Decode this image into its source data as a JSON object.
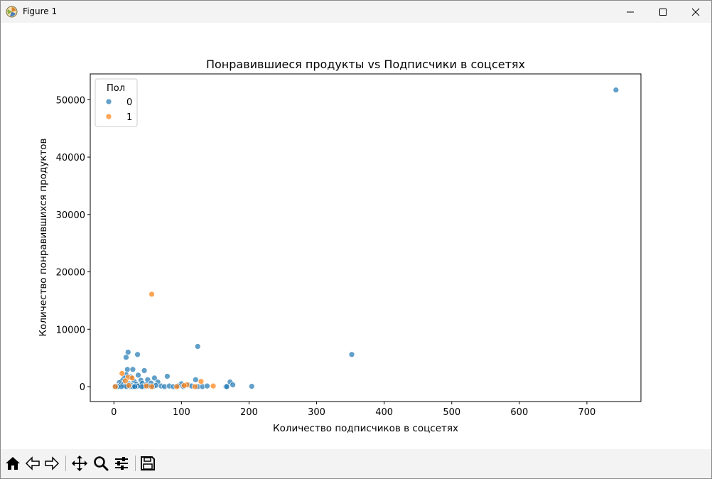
{
  "window": {
    "title": "Figure 1"
  },
  "toolbar": {
    "items": [
      {
        "icon": "home-icon"
      },
      {
        "icon": "back-arrow-icon"
      },
      {
        "icon": "forward-arrow-icon"
      },
      {
        "icon": "pan-move-icon"
      },
      {
        "icon": "zoom-magnifier-icon"
      },
      {
        "icon": "configure-subplots-icon"
      },
      {
        "icon": "save-floppy-icon"
      }
    ]
  },
  "chart_data": {
    "type": "scatter",
    "title": "Понравившиеся продукты vs Подписчики в соцсетях",
    "xlabel": "Количество подписчиков в соцсетях",
    "ylabel": "Количество понравившихся продуктов",
    "xlim": [
      -35,
      780
    ],
    "ylim": [
      -2600,
      54500
    ],
    "xticks": [
      0,
      100,
      200,
      300,
      400,
      500,
      600,
      700
    ],
    "yticks": [
      0,
      10000,
      20000,
      30000,
      40000,
      50000
    ],
    "grid": false,
    "legend": {
      "title": "Пол",
      "position": "top-left",
      "entries": [
        "0",
        "1"
      ]
    },
    "colors": {
      "0": "#1f77b4",
      "1": "#ff7f0e"
    },
    "series": [
      {
        "name": "0",
        "points": [
          [
            743,
            51700
          ],
          [
            352,
            5600
          ],
          [
            124,
            7000
          ],
          [
            21,
            6000
          ],
          [
            35,
            5600
          ],
          [
            18,
            5100
          ],
          [
            20,
            3000
          ],
          [
            28,
            3000
          ],
          [
            45,
            2800
          ],
          [
            36,
            2000
          ],
          [
            79,
            1800
          ],
          [
            18,
            2100
          ],
          [
            25,
            1700
          ],
          [
            15,
            1500
          ],
          [
            60,
            1500
          ],
          [
            121,
            1200
          ],
          [
            12,
            1000
          ],
          [
            30,
            900
          ],
          [
            40,
            1100
          ],
          [
            50,
            1200
          ],
          [
            8,
            700
          ],
          [
            55,
            600
          ],
          [
            65,
            800
          ],
          [
            100,
            500
          ],
          [
            172,
            800
          ],
          [
            176,
            300
          ],
          [
            10,
            300
          ],
          [
            14,
            400
          ],
          [
            22,
            500
          ],
          [
            26,
            200
          ],
          [
            33,
            400
          ],
          [
            38,
            200
          ],
          [
            42,
            600
          ],
          [
            48,
            300
          ],
          [
            5,
            100
          ],
          [
            2,
            50
          ],
          [
            16,
            100
          ],
          [
            24,
            0
          ],
          [
            30,
            50
          ],
          [
            35,
            100
          ],
          [
            44,
            0
          ],
          [
            52,
            100
          ],
          [
            58,
            0
          ],
          [
            62,
            200
          ],
          [
            70,
            100
          ],
          [
            75,
            0
          ],
          [
            82,
            100
          ],
          [
            88,
            0
          ],
          [
            95,
            100
          ],
          [
            103,
            0
          ],
          [
            110,
            300
          ],
          [
            115,
            100
          ],
          [
            124,
            0
          ],
          [
            131,
            0
          ],
          [
            138,
            100
          ],
          [
            166,
            0
          ],
          [
            167,
            0
          ],
          [
            204,
            50
          ],
          [
            6,
            0
          ],
          [
            11,
            0
          ],
          [
            19,
            0
          ],
          [
            28,
            0
          ],
          [
            31,
            0
          ],
          [
            41,
            0
          ]
        ]
      },
      {
        "name": "1",
        "points": [
          [
            56,
            16100
          ],
          [
            12,
            2300
          ],
          [
            21,
            1600
          ],
          [
            27,
            1500
          ],
          [
            129,
            900
          ],
          [
            17,
            1000
          ],
          [
            108,
            300
          ],
          [
            147,
            100
          ],
          [
            2,
            0
          ],
          [
            22,
            200
          ],
          [
            48,
            100
          ],
          [
            56,
            0
          ],
          [
            93,
            0
          ],
          [
            104,
            200
          ],
          [
            120,
            0
          ]
        ]
      }
    ]
  }
}
